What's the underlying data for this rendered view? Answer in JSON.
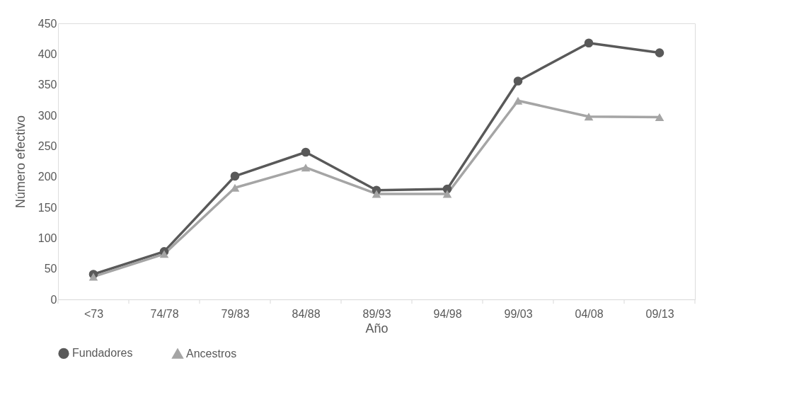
{
  "chart_data": {
    "type": "line",
    "xlabel": "Año",
    "ylabel": "Número efectivo",
    "categories": [
      "<73",
      "74/78",
      "79/83",
      "84/88",
      "89/93",
      "94/98",
      "99/03",
      "04/08",
      "09/13"
    ],
    "series": [
      {
        "name": "Fundadores",
        "color": "#595959",
        "marker": "circle",
        "values": [
          41,
          78,
          201,
          240,
          178,
          180,
          356,
          418,
          402
        ]
      },
      {
        "name": "Ancestros",
        "color": "#a5a5a5",
        "marker": "triangle",
        "values": [
          37,
          74,
          182,
          215,
          172,
          172,
          324,
          298,
          297
        ]
      }
    ],
    "ylim": [
      0,
      450
    ],
    "yticks": [
      0,
      50,
      100,
      150,
      200,
      250,
      300,
      350,
      400,
      450
    ],
    "grid": false,
    "legend": "bottom"
  }
}
